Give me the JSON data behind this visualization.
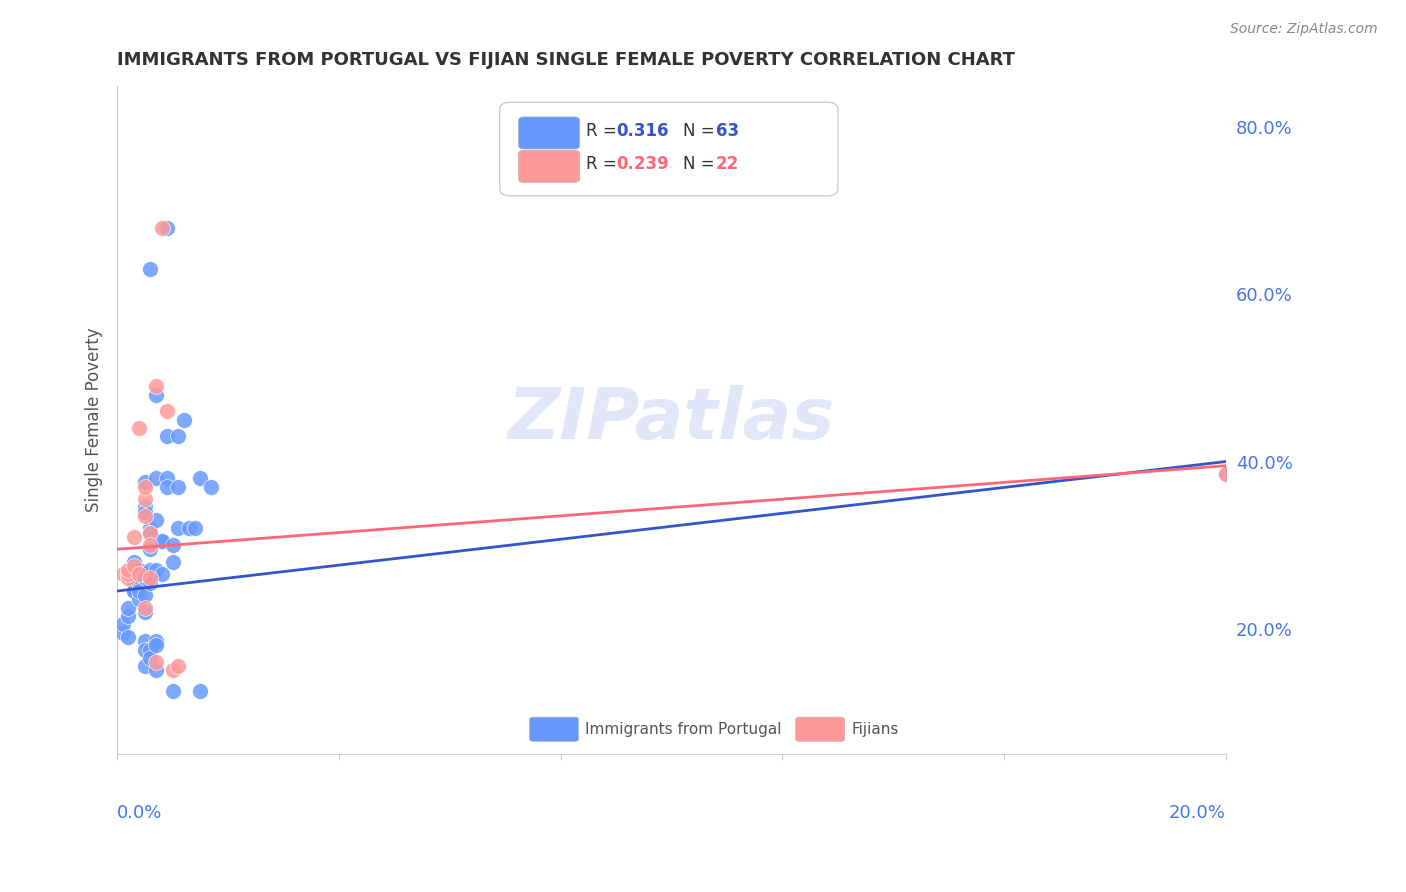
{
  "title": "IMMIGRANTS FROM PORTUGAL VS FIJIAN SINGLE FEMALE POVERTY CORRELATION CHART",
  "source": "Source: ZipAtlas.com",
  "ylabel": "Single Female Poverty",
  "legend_blue_r": "0.316",
  "legend_blue_n": "63",
  "legend_pink_r": "0.239",
  "legend_pink_n": "22",
  "right_yticks": [
    0.2,
    0.4,
    0.6,
    0.8
  ],
  "right_ytick_labels": [
    "20.0%",
    "40.0%",
    "60.0%",
    "80.0%"
  ],
  "xlim": [
    0.0,
    0.2
  ],
  "ylim": [
    0.05,
    0.85
  ],
  "blue_color": "#6699ff",
  "pink_color": "#ff9999",
  "blue_line_color": "#3355cc",
  "pink_line_color": "#ff6677",
  "blue_scatter": [
    [
      0.001,
      0.195
    ],
    [
      0.001,
      0.205
    ],
    [
      0.002,
      0.215
    ],
    [
      0.002,
      0.19
    ],
    [
      0.002,
      0.225
    ],
    [
      0.003,
      0.245
    ],
    [
      0.003,
      0.255
    ],
    [
      0.003,
      0.27
    ],
    [
      0.003,
      0.28
    ],
    [
      0.003,
      0.27
    ],
    [
      0.003,
      0.265
    ],
    [
      0.003,
      0.245
    ],
    [
      0.004,
      0.255
    ],
    [
      0.004,
      0.265
    ],
    [
      0.004,
      0.27
    ],
    [
      0.004,
      0.255
    ],
    [
      0.004,
      0.235
    ],
    [
      0.004,
      0.245
    ],
    [
      0.005,
      0.375
    ],
    [
      0.005,
      0.345
    ],
    [
      0.005,
      0.34
    ],
    [
      0.005,
      0.265
    ],
    [
      0.005,
      0.26
    ],
    [
      0.005,
      0.24
    ],
    [
      0.005,
      0.22
    ],
    [
      0.005,
      0.185
    ],
    [
      0.005,
      0.175
    ],
    [
      0.005,
      0.155
    ],
    [
      0.006,
      0.63
    ],
    [
      0.006,
      0.32
    ],
    [
      0.006,
      0.315
    ],
    [
      0.006,
      0.295
    ],
    [
      0.006,
      0.27
    ],
    [
      0.006,
      0.255
    ],
    [
      0.006,
      0.175
    ],
    [
      0.006,
      0.165
    ],
    [
      0.007,
      0.48
    ],
    [
      0.007,
      0.38
    ],
    [
      0.007,
      0.33
    ],
    [
      0.007,
      0.27
    ],
    [
      0.007,
      0.185
    ],
    [
      0.007,
      0.18
    ],
    [
      0.007,
      0.15
    ],
    [
      0.008,
      0.305
    ],
    [
      0.008,
      0.305
    ],
    [
      0.008,
      0.265
    ],
    [
      0.009,
      0.68
    ],
    [
      0.009,
      0.43
    ],
    [
      0.009,
      0.38
    ],
    [
      0.009,
      0.37
    ],
    [
      0.01,
      0.3
    ],
    [
      0.01,
      0.28
    ],
    [
      0.01,
      0.125
    ],
    [
      0.011,
      0.43
    ],
    [
      0.011,
      0.37
    ],
    [
      0.011,
      0.32
    ],
    [
      0.012,
      0.45
    ],
    [
      0.013,
      0.32
    ],
    [
      0.014,
      0.32
    ],
    [
      0.015,
      0.38
    ],
    [
      0.015,
      0.125
    ],
    [
      0.017,
      0.37
    ],
    [
      0.2,
      0.385
    ]
  ],
  "pink_scatter": [
    [
      0.001,
      0.265
    ],
    [
      0.002,
      0.26
    ],
    [
      0.002,
      0.265
    ],
    [
      0.002,
      0.27
    ],
    [
      0.003,
      0.275
    ],
    [
      0.003,
      0.31
    ],
    [
      0.004,
      0.265
    ],
    [
      0.004,
      0.44
    ],
    [
      0.005,
      0.225
    ],
    [
      0.005,
      0.335
    ],
    [
      0.005,
      0.355
    ],
    [
      0.005,
      0.37
    ],
    [
      0.006,
      0.315
    ],
    [
      0.006,
      0.3
    ],
    [
      0.006,
      0.26
    ],
    [
      0.007,
      0.49
    ],
    [
      0.007,
      0.16
    ],
    [
      0.008,
      0.68
    ],
    [
      0.009,
      0.46
    ],
    [
      0.01,
      0.15
    ],
    [
      0.011,
      0.155
    ],
    [
      0.2,
      0.385
    ]
  ],
  "blue_trendline": [
    [
      0.0,
      0.245
    ],
    [
      0.2,
      0.4
    ]
  ],
  "pink_trendline": [
    [
      0.0,
      0.295
    ],
    [
      0.2,
      0.395
    ]
  ],
  "grid_color": "#cccccc",
  "background_color": "#ffffff",
  "title_color": "#333333",
  "axis_label_color": "#4477ee",
  "watermark": "ZIPatlas",
  "watermark_color": "#aabbee"
}
